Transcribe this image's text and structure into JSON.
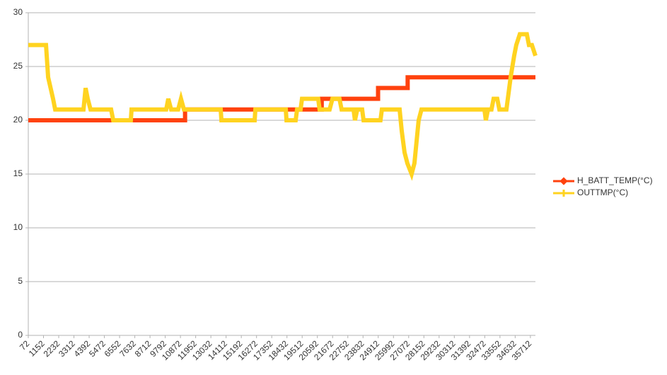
{
  "chart_data": {
    "type": "line",
    "xlim": [
      72,
      36070
    ],
    "xticks": [
      72,
      1152,
      2232,
      3312,
      4392,
      5472,
      6552,
      7632,
      8712,
      9792,
      10872,
      11952,
      13032,
      14112,
      15192,
      16272,
      17352,
      18432,
      19512,
      20592,
      21672,
      22752,
      23832,
      24912,
      25992,
      27072,
      28152,
      29232,
      30312,
      31392,
      32472,
      33552,
      34632,
      35712
    ],
    "ylim": [
      0,
      30
    ],
    "yticks": [
      0,
      5,
      10,
      15,
      20,
      25,
      30
    ],
    "grid": true,
    "legend": "right",
    "series": [
      {
        "name": "H_BATT_TEMP(°C)",
        "color": "#ff420e",
        "x": [
          72,
          11200,
          11200,
          20900,
          20900,
          24900,
          24900,
          27000,
          27000,
          36070
        ],
        "values": [
          20,
          20,
          21,
          21,
          22,
          22,
          23,
          23,
          24,
          24
        ]
      },
      {
        "name": "OUTTMP(°C)",
        "color": "#ffd320",
        "x": [
          72,
          1330,
          1480,
          1830,
          1980,
          3990,
          4140,
          4290,
          4490,
          5950,
          6100,
          7350,
          7400,
          9860,
          10010,
          10210,
          10710,
          10910,
          11120,
          13730,
          13780,
          16140,
          16190,
          18350,
          18400,
          19050,
          19150,
          19400,
          19500,
          20650,
          20750,
          21460,
          21660,
          22160,
          22310,
          23160,
          23260,
          23420,
          23770,
          23870,
          25070,
          25170,
          26430,
          26580,
          26780,
          26980,
          27280,
          27480,
          27780,
          27980,
          32450,
          32550,
          32700,
          32950,
          33100,
          33360,
          33510,
          34010,
          34110,
          34310,
          34560,
          34710,
          34960,
          35460,
          35610,
          35820,
          36070
        ],
        "values": [
          27,
          27,
          24,
          22,
          21,
          21,
          23,
          22,
          21,
          21,
          20,
          20,
          21,
          21,
          22,
          21,
          21,
          22,
          21,
          21,
          20,
          20,
          21,
          21,
          20,
          20,
          21,
          21,
          22,
          22,
          21,
          21,
          22,
          22,
          21,
          21,
          20,
          21,
          21,
          20,
          20,
          21,
          21,
          19,
          17,
          16,
          15,
          16,
          20,
          21,
          21,
          20,
          21,
          21,
          22,
          22,
          21,
          21,
          22,
          24,
          26,
          27,
          28,
          28,
          27,
          27,
          26
        ]
      }
    ]
  }
}
